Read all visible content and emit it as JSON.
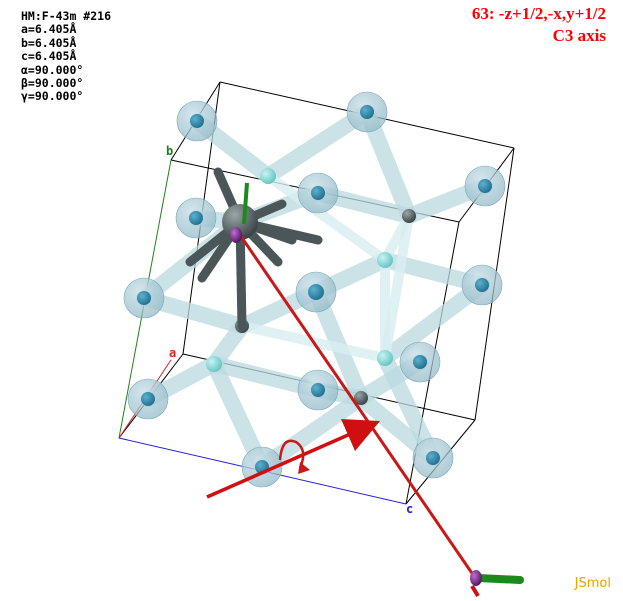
{
  "cell_info": {
    "space_group": "HM:F-43m #216",
    "a": "a=6.405Å",
    "b": "b=6.405Å",
    "c": "c=6.405Å",
    "alpha": "α=90.000°",
    "beta": "β=90.000°",
    "gamma": "γ=90.000°"
  },
  "symmetry": {
    "operation": "63: -z+1/2,-x,y+1/2",
    "element": "C3 axis"
  },
  "axes": {
    "a_label": "a",
    "b_label": "b",
    "c_label": "c",
    "a_color": "#e02020",
    "b_color": "#208020",
    "c_color": "#2020e0"
  },
  "brand": "JSmol",
  "colors": {
    "symop_text": "#ff0000",
    "brand_text": "#f0a000",
    "atom_blue": "#2a7fa0",
    "atom_cyan": "#5fc8c8",
    "atom_dark": "#556060",
    "highlight_atom": "#7a1a8a",
    "operation_arrow": "#d01010"
  }
}
